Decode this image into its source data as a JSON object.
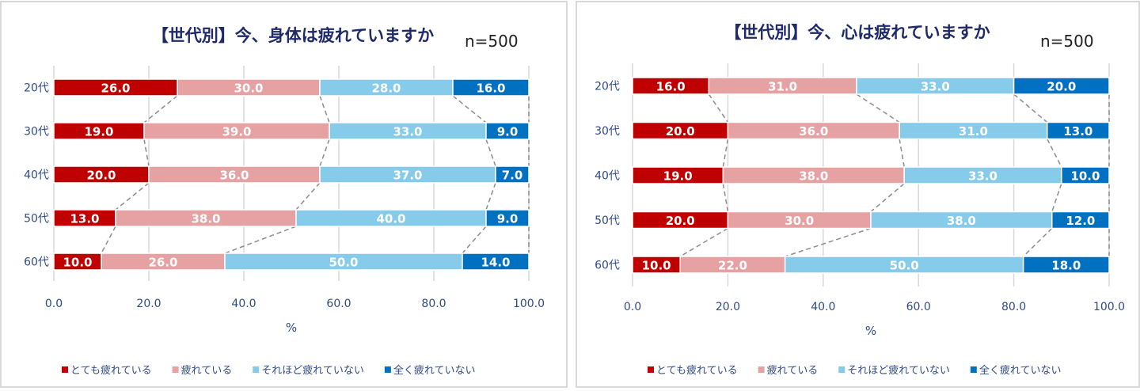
{
  "colors": {
    "very_tired": "#C00000",
    "tired": "#E6A1A3",
    "not_very_tired": "#87CBEB",
    "not_tired_at_all": "#0070C0",
    "grid": "#d9d9d9",
    "connector": "#8c8c8c"
  },
  "chart_data": [
    {
      "type": "bar",
      "orientation": "horizontal-stacked-100",
      "title": "【世代別】今、身体は疲れていますか",
      "sample_size": "n=500",
      "categories": [
        "20代",
        "30代",
        "40代",
        "50代",
        "60代"
      ],
      "series": [
        {
          "name": "とても疲れている",
          "color_key": "very_tired",
          "values": [
            26.0,
            19.0,
            20.0,
            13.0,
            10.0
          ]
        },
        {
          "name": "疲れている",
          "color_key": "tired",
          "values": [
            30.0,
            39.0,
            36.0,
            38.0,
            26.0
          ]
        },
        {
          "name": "それほど疲れていない",
          "color_key": "not_very_tired",
          "values": [
            28.0,
            33.0,
            37.0,
            40.0,
            50.0
          ]
        },
        {
          "name": "全く疲れていない",
          "color_key": "not_tired_at_all",
          "values": [
            16.0,
            9.0,
            7.0,
            9.0,
            14.0
          ]
        }
      ],
      "xlabel": "%",
      "ylabel": "",
      "xlim": [
        0,
        100
      ],
      "xticks": [
        "0.0",
        "20.0",
        "40.0",
        "60.0",
        "80.0",
        "100.0"
      ],
      "grid": true,
      "legend_position": "bottom",
      "series_lines": true
    },
    {
      "type": "bar",
      "orientation": "horizontal-stacked-100",
      "title": "【世代別】今、心は疲れていますか",
      "sample_size": "n=500",
      "categories": [
        "20代",
        "30代",
        "40代",
        "50代",
        "60代"
      ],
      "series": [
        {
          "name": "とても疲れている",
          "color_key": "very_tired",
          "values": [
            16.0,
            20.0,
            19.0,
            20.0,
            10.0
          ]
        },
        {
          "name": "疲れている",
          "color_key": "tired",
          "values": [
            31.0,
            36.0,
            38.0,
            30.0,
            22.0
          ]
        },
        {
          "name": "それほど疲れていない",
          "color_key": "not_very_tired",
          "values": [
            33.0,
            31.0,
            33.0,
            38.0,
            50.0
          ]
        },
        {
          "name": "全く疲れていない",
          "color_key": "not_tired_at_all",
          "values": [
            20.0,
            13.0,
            10.0,
            12.0,
            18.0
          ]
        }
      ],
      "xlabel": "%",
      "ylabel": "",
      "xlim": [
        0,
        100
      ],
      "xticks": [
        "0.0",
        "20.0",
        "40.0",
        "60.0",
        "80.0",
        "100.0"
      ],
      "grid": true,
      "legend_position": "bottom",
      "series_lines": true
    }
  ]
}
